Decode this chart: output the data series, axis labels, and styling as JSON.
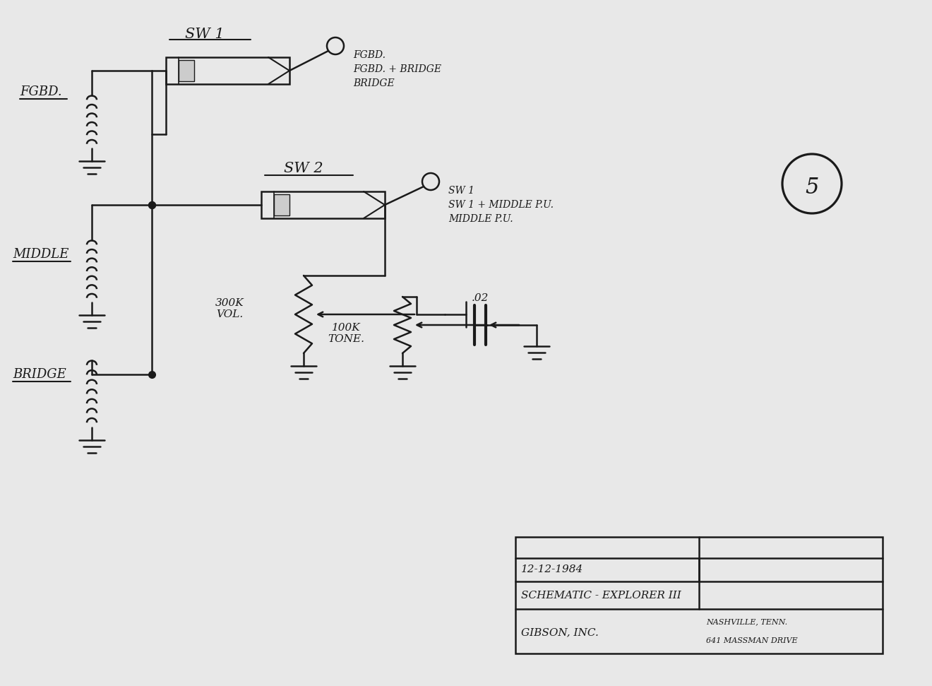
{
  "bg_color": "#e8e8e8",
  "line_color": "#1a1a1a",
  "sw1_label": "SW 1",
  "sw2_label": "SW 2",
  "fgbd_label": "FGBD.",
  "middle_label": "MIDDLE",
  "bridge_label": "BRIDGE",
  "sw1_positions": [
    "FGBD.",
    "FGBD. + BRIDGE",
    "BRIDGE"
  ],
  "sw2_positions": [
    "SW 1",
    "SW 1 + MIDDLE P.U.",
    "MIDDLE P.U."
  ],
  "vol_label": "300K\nVOL.",
  "tone_label": "100K\nTONE.",
  "cap_label": ".02",
  "title_line1a": "GIBSON, INC.",
  "title_line1b": "641 MASSMAN DRIVE",
  "title_line1c": "NASHVILLE, TENN.",
  "title_line2": "SCHEMATIC - EXPLORER III",
  "title_line3": "12-12-1984"
}
